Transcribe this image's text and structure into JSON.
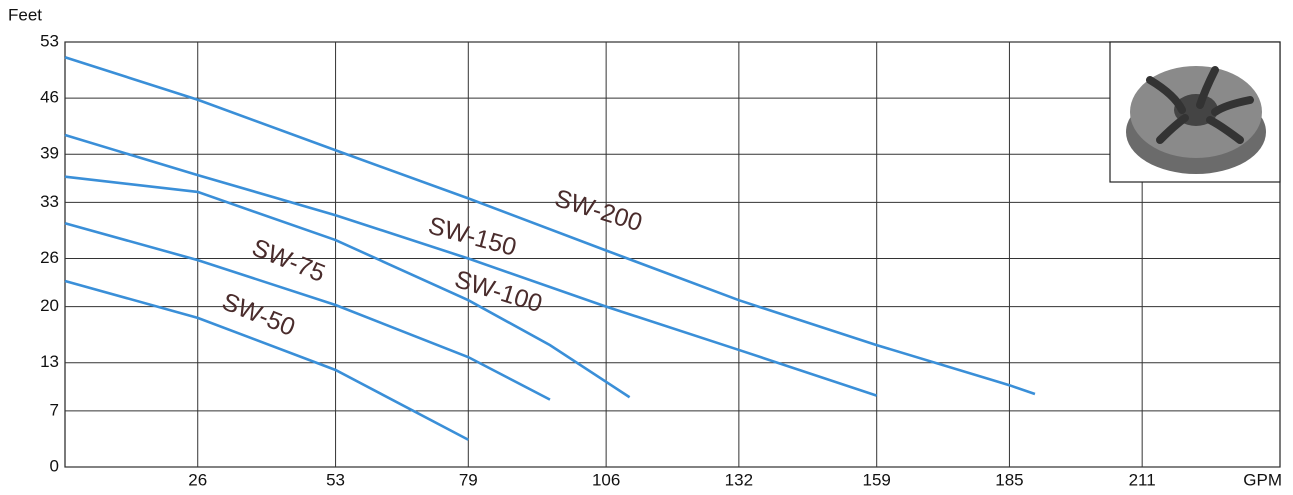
{
  "chart_data": {
    "type": "line",
    "y_label": "Feet",
    "x_label": "GPM",
    "xlim": [
      0,
      238
    ],
    "xticks": [
      26,
      53,
      79,
      106,
      132,
      159,
      185,
      211
    ],
    "ylim": [
      0,
      53
    ],
    "yticks": [
      0,
      7,
      13,
      20,
      26,
      33,
      39,
      46,
      53
    ],
    "grid": true,
    "series": [
      {
        "name": "SW-200",
        "color": "#3a8fd8",
        "x": [
          0,
          26,
          53,
          79,
          106,
          132,
          159,
          185,
          190
        ],
        "values": [
          51.1,
          45.8,
          39.5,
          33.5,
          27,
          20.8,
          15.2,
          10.2,
          9.1
        ]
      },
      {
        "name": "SW-150",
        "color": "#3a8fd8",
        "x": [
          0,
          26,
          53,
          79,
          106,
          132,
          159
        ],
        "values": [
          41.4,
          36.4,
          31.4,
          26,
          20,
          14.6,
          8.9
        ]
      },
      {
        "name": "SW-100",
        "color": "#3a8fd8",
        "x": [
          0,
          26,
          53,
          79,
          95,
          110.6
        ],
        "values": [
          36.2,
          34.3,
          28.3,
          20.8,
          15.2,
          8.7
        ]
      },
      {
        "name": "SW-75",
        "color": "#3a8fd8",
        "x": [
          0,
          26,
          53,
          79,
          95
        ],
        "values": [
          30.4,
          25.8,
          20.2,
          13.7,
          8.4
        ]
      },
      {
        "name": "SW-50",
        "color": "#3a8fd8",
        "x": [
          0,
          26,
          53,
          79
        ],
        "values": [
          23.2,
          18.6,
          12.1,
          3.4
        ]
      }
    ]
  }
}
